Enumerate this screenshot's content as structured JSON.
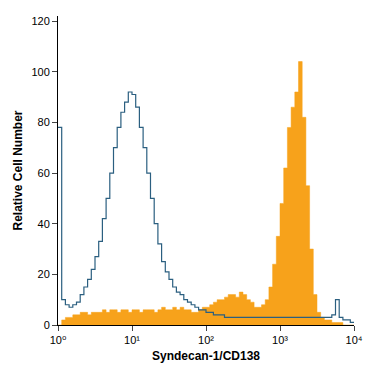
{
  "chart_data": {
    "type": "histogram",
    "x_label": "Syndecan-1/CD138",
    "y_label": "Relative Cell Number",
    "log": "x",
    "grid": false,
    "xlim": [
      1,
      10000
    ],
    "ylim": [
      0,
      122
    ],
    "xticks": [
      {
        "value": 1,
        "label": "10⁰"
      },
      {
        "value": 10,
        "label": "10¹"
      },
      {
        "value": 100,
        "label": "10²"
      },
      {
        "value": 1000,
        "label": "10³"
      },
      {
        "value": 10000,
        "label": "10⁴"
      }
    ],
    "yticks": [
      0,
      20,
      40,
      60,
      80,
      100,
      120
    ],
    "bins": [
      1,
      1.122,
      1.259,
      1.413,
      1.585,
      1.778,
      1.995,
      2.239,
      2.512,
      2.818,
      3.162,
      3.548,
      3.981,
      4.467,
      5.012,
      5.623,
      6.31,
      7.079,
      7.943,
      8.913,
      10,
      11.22,
      12.59,
      14.13,
      15.85,
      17.78,
      19.95,
      22.39,
      25.12,
      28.18,
      31.62,
      35.48,
      39.81,
      44.67,
      50.12,
      56.23,
      63.1,
      70.79,
      79.43,
      89.13,
      100,
      112.2,
      125.9,
      141.3,
      158.5,
      177.8,
      199.5,
      223.9,
      251.2,
      281.8,
      316.2,
      354.8,
      398.1,
      446.7,
      501.2,
      562.3,
      631,
      707.9,
      794.3,
      891.3,
      1000,
      1122,
      1259,
      1413,
      1585,
      1778,
      1995,
      2239,
      2512,
      2818,
      3162,
      3548,
      3981,
      4467,
      5012,
      5623,
      6310,
      7079,
      7943,
      8913,
      10000
    ],
    "series": [
      {
        "type": "area",
        "color": "#f7a21b",
        "values": [
          0,
          2,
          3,
          3,
          4,
          4,
          5,
          5,
          4,
          5,
          5,
          5,
          6,
          5,
          6,
          6,
          5,
          6,
          6,
          5,
          6,
          6,
          5,
          6,
          6,
          6,
          5,
          6,
          7,
          6,
          6,
          7,
          6,
          7,
          6,
          6,
          5,
          5,
          6,
          7,
          7,
          8,
          9,
          10,
          10,
          11,
          12,
          12,
          11,
          13,
          12,
          10,
          9,
          7,
          7,
          8,
          10,
          15,
          24,
          35,
          48,
          62,
          78,
          86,
          92,
          104,
          82,
          55,
          30,
          12,
          5,
          3,
          2,
          2,
          1,
          1,
          1,
          0,
          0,
          0
        ]
      },
      {
        "type": "line",
        "color": "#2b5f80",
        "values": [
          78,
          10,
          8,
          7,
          8,
          9,
          12,
          15,
          18,
          22,
          27,
          33,
          42,
          50,
          60,
          70,
          78,
          84,
          88,
          92,
          91,
          86,
          78,
          70,
          60,
          50,
          40,
          32,
          25,
          21,
          18,
          15,
          13,
          12,
          10,
          9,
          8,
          7,
          6,
          6,
          5,
          5,
          4,
          4,
          4,
          3,
          3,
          3,
          3,
          3,
          3,
          3,
          3,
          3,
          3,
          3,
          3,
          3,
          3,
          3,
          3,
          3,
          3,
          3,
          3,
          3,
          3,
          3,
          3,
          3,
          3,
          3,
          3,
          3,
          4,
          10,
          3,
          2,
          2,
          1
        ]
      }
    ]
  }
}
